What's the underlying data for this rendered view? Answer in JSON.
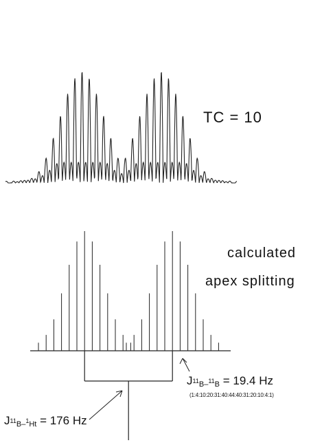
{
  "labels": {
    "top_trace": "TC = 10",
    "stick_title_line1": "calculated",
    "stick_title_line2": "apex splitting",
    "coupling_bb": {
      "prefix": "J",
      "iso1": "11",
      "nuc1": "B",
      "dash": "–",
      "iso2": "11",
      "nuc2": "B",
      "value": "= 19.4 Hz"
    },
    "intensity_sequence": "(1:4:10:20:31:40:44:40:31:20:10:4:1)",
    "coupling_bh": {
      "prefix": "J",
      "iso1": "11",
      "nuc1": "B",
      "dash": "–",
      "iso2": "1",
      "nuc2": "H",
      "sub2": "t",
      "value": "= 176 Hz"
    }
  },
  "chart_data": [
    {
      "type": "line",
      "name": "TC = 10",
      "description_free": true,
      "x_units": "relative",
      "profile": {
        "left_group_peak_relative": [
          0.04,
          0.1,
          0.22,
          0.4,
          0.6,
          0.8,
          0.94,
          1.0,
          0.94,
          0.8,
          0.6,
          0.4,
          0.22
        ],
        "right_group_peak_relative": [
          0.22,
          0.4,
          0.6,
          0.8,
          0.94,
          1.0,
          0.94,
          0.8,
          0.6,
          0.4,
          0.22,
          0.1,
          0.04
        ]
      }
    },
    {
      "type": "bar",
      "name": "calculated apex splitting",
      "intensities": [
        1,
        4,
        10,
        20,
        31,
        40,
        44,
        40,
        31,
        20,
        10,
        4,
        1
      ],
      "doublet_groups": 2,
      "coupling_bb_hz": 19.4,
      "coupling_bh_hz": 176
    }
  ]
}
